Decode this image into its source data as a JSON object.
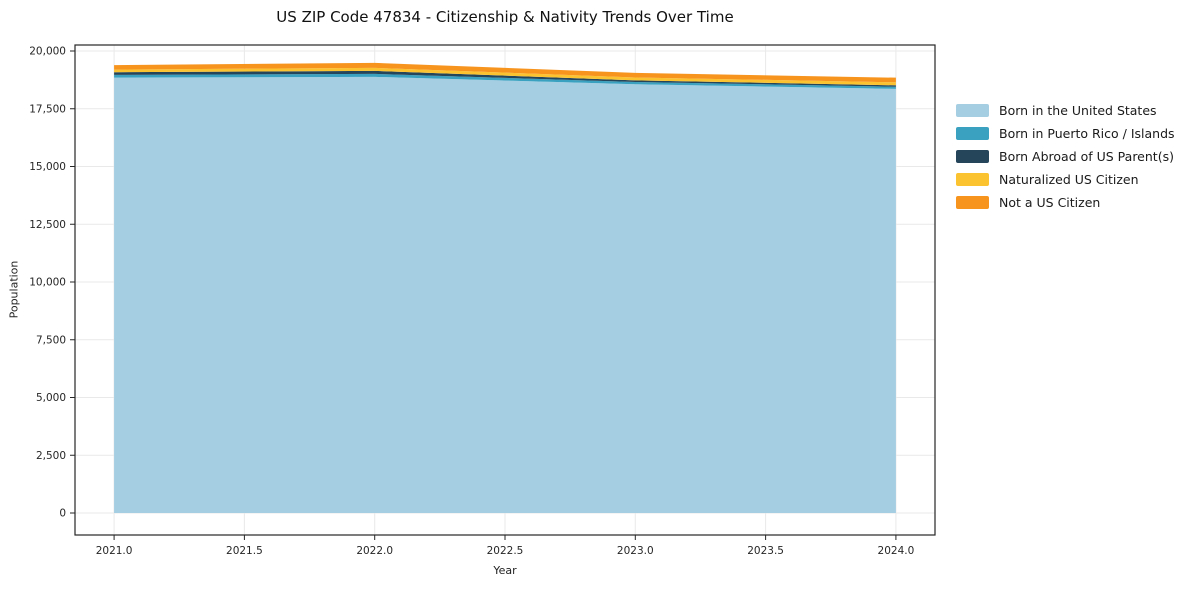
{
  "title": "US ZIP Code 47834 - Citizenship & Nativity Trends Over Time",
  "chart_data": {
    "type": "area",
    "stacked": true,
    "title": "US ZIP Code 47834 - Citizenship & Nativity Trends Over Time",
    "xlabel": "Year",
    "ylabel": "Population",
    "x": [
      2021,
      2022,
      2023,
      2024
    ],
    "series": [
      {
        "name": "Born in the United States",
        "color": "#a5cee3",
        "values": [
          18850,
          18880,
          18560,
          18360
        ]
      },
      {
        "name": "Born in Puerto Rico / Islands",
        "color": "#3aa2c0",
        "values": [
          115,
          130,
          100,
          95
        ]
      },
      {
        "name": "Born Abroad of US Parent(s)",
        "color": "#25455a",
        "values": [
          115,
          130,
          70,
          60
        ]
      },
      {
        "name": "Naturalized US Citizen",
        "color": "#fcc330",
        "values": [
          115,
          130,
          125,
          130
        ]
      },
      {
        "name": "Not a US Citizen",
        "color": "#f7941e",
        "values": [
          195,
          215,
          200,
          200
        ]
      }
    ],
    "xlim": [
      2020.85,
      2024.15
    ],
    "ylim": [
      0,
      20000
    ],
    "xticks": [
      2021.0,
      2021.5,
      2022.0,
      2022.5,
      2023.0,
      2023.5,
      2024.0
    ],
    "xtick_labels": [
      "2021.0",
      "2021.5",
      "2022.0",
      "2022.5",
      "2023.0",
      "2023.5",
      "2024.0"
    ],
    "yticks": [
      0,
      2500,
      5000,
      7500,
      10000,
      12500,
      15000,
      17500,
      20000
    ],
    "ytick_labels": [
      "0",
      "2,500",
      "5,000",
      "7,500",
      "10,000",
      "12,500",
      "15,000",
      "17,500",
      "20,000"
    ],
    "grid": true,
    "legend_position": "right of plot"
  },
  "colors": {
    "background": "#ffffff",
    "grid": "#e9e9e9",
    "spine": "#262626",
    "tick_text": "#262626",
    "title_text": "#111111"
  }
}
